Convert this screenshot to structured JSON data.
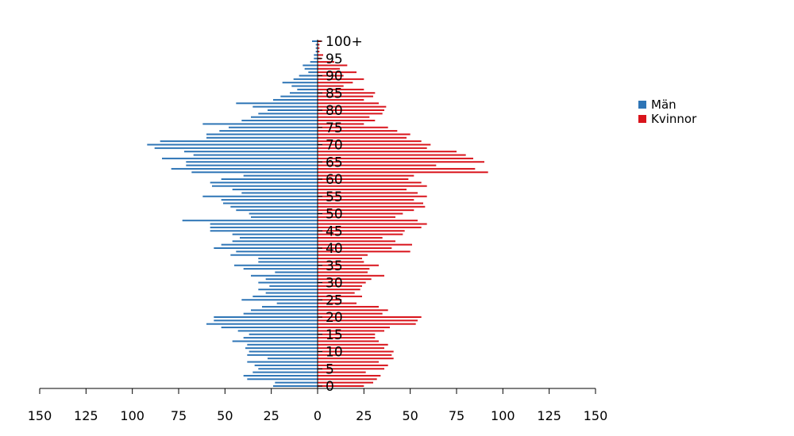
{
  "colors": {
    "men": "#2e75b6",
    "women": "#d9141c",
    "axis": "#000000"
  },
  "legend": {
    "men_label": "Män",
    "women_label": "Kvinnor"
  },
  "age_labels": [
    "0",
    "5",
    "10",
    "15",
    "20",
    "25",
    "30",
    "35",
    "40",
    "45",
    "50",
    "55",
    "60",
    "65",
    "70",
    "75",
    "80",
    "85",
    "90",
    "95",
    "100+"
  ],
  "x_tick_labels": [
    "150",
    "125",
    "100",
    "75",
    "50",
    "25",
    "0",
    "25",
    "50",
    "75",
    "100",
    "125",
    "150"
  ],
  "chart_data": {
    "type": "bar",
    "orientation": "horizontal-population-pyramid",
    "categories": [
      "0",
      "1",
      "2",
      "3",
      "4",
      "5",
      "6",
      "7",
      "8",
      "9",
      "10",
      "11",
      "12",
      "13",
      "14",
      "15",
      "16",
      "17",
      "18",
      "19",
      "20",
      "21",
      "22",
      "23",
      "24",
      "25",
      "26",
      "27",
      "28",
      "29",
      "30",
      "31",
      "32",
      "33",
      "34",
      "35",
      "36",
      "37",
      "38",
      "39",
      "40",
      "41",
      "42",
      "43",
      "44",
      "45",
      "46",
      "47",
      "48",
      "49",
      "50",
      "51",
      "52",
      "53",
      "54",
      "55",
      "56",
      "57",
      "58",
      "59",
      "60",
      "61",
      "62",
      "63",
      "64",
      "65",
      "66",
      "67",
      "68",
      "69",
      "70",
      "71",
      "72",
      "73",
      "74",
      "75",
      "76",
      "77",
      "78",
      "79",
      "80",
      "81",
      "82",
      "83",
      "84",
      "85",
      "86",
      "87",
      "88",
      "89",
      "90",
      "91",
      "92",
      "93",
      "94",
      "95",
      "96",
      "97",
      "98",
      "99",
      "100+"
    ],
    "series": [
      {
        "name": "Män",
        "values": [
          24,
          23,
          38,
          40,
          35,
          32,
          34,
          38,
          27,
          38,
          37,
          39,
          38,
          46,
          40,
          37,
          43,
          52,
          60,
          56,
          56,
          40,
          36,
          30,
          22,
          41,
          35,
          28,
          32,
          26,
          32,
          28,
          36,
          23,
          40,
          45,
          32,
          32,
          47,
          44,
          56,
          52,
          46,
          42,
          46,
          58,
          58,
          58,
          73,
          36,
          37,
          44,
          47,
          51,
          52,
          62,
          41,
          46,
          57,
          58,
          52,
          40,
          68,
          79,
          71,
          71,
          84,
          67,
          72,
          88,
          92,
          85,
          60,
          60,
          53,
          48,
          62,
          41,
          36,
          32,
          27,
          35,
          44,
          24,
          20,
          15,
          11,
          14,
          19,
          13,
          10,
          5,
          7,
          8,
          4,
          2,
          2,
          1,
          1,
          1,
          3
        ]
      },
      {
        "name": "Kvinnor",
        "values": [
          25,
          30,
          32,
          34,
          26,
          36,
          38,
          33,
          41,
          40,
          41,
          36,
          38,
          33,
          31,
          31,
          36,
          39,
          53,
          54,
          56,
          35,
          38,
          33,
          21,
          13,
          24,
          20,
          23,
          24,
          26,
          29,
          36,
          27,
          28,
          33,
          25,
          24,
          27,
          50,
          40,
          51,
          42,
          35,
          46,
          47,
          56,
          59,
          54,
          42,
          46,
          52,
          58,
          57,
          52,
          59,
          54,
          48,
          59,
          56,
          49,
          52,
          92,
          85,
          64,
          90,
          84,
          80,
          75,
          59,
          61,
          56,
          48,
          50,
          43,
          38,
          25,
          31,
          28,
          35,
          36,
          37,
          33,
          25,
          30,
          31,
          25,
          14,
          19,
          25,
          14,
          21,
          12,
          16,
          9,
          2,
          3,
          1,
          1,
          1,
          2
        ]
      }
    ],
    "xlim": [
      -150,
      150
    ],
    "x_ticks": [
      -150,
      -125,
      -100,
      -75,
      -50,
      -25,
      0,
      25,
      50,
      75,
      100,
      125,
      150
    ],
    "age_label_step": 5,
    "legend_position": "right",
    "grid": false,
    "title": "",
    "xlabel": "",
    "ylabel": ""
  }
}
